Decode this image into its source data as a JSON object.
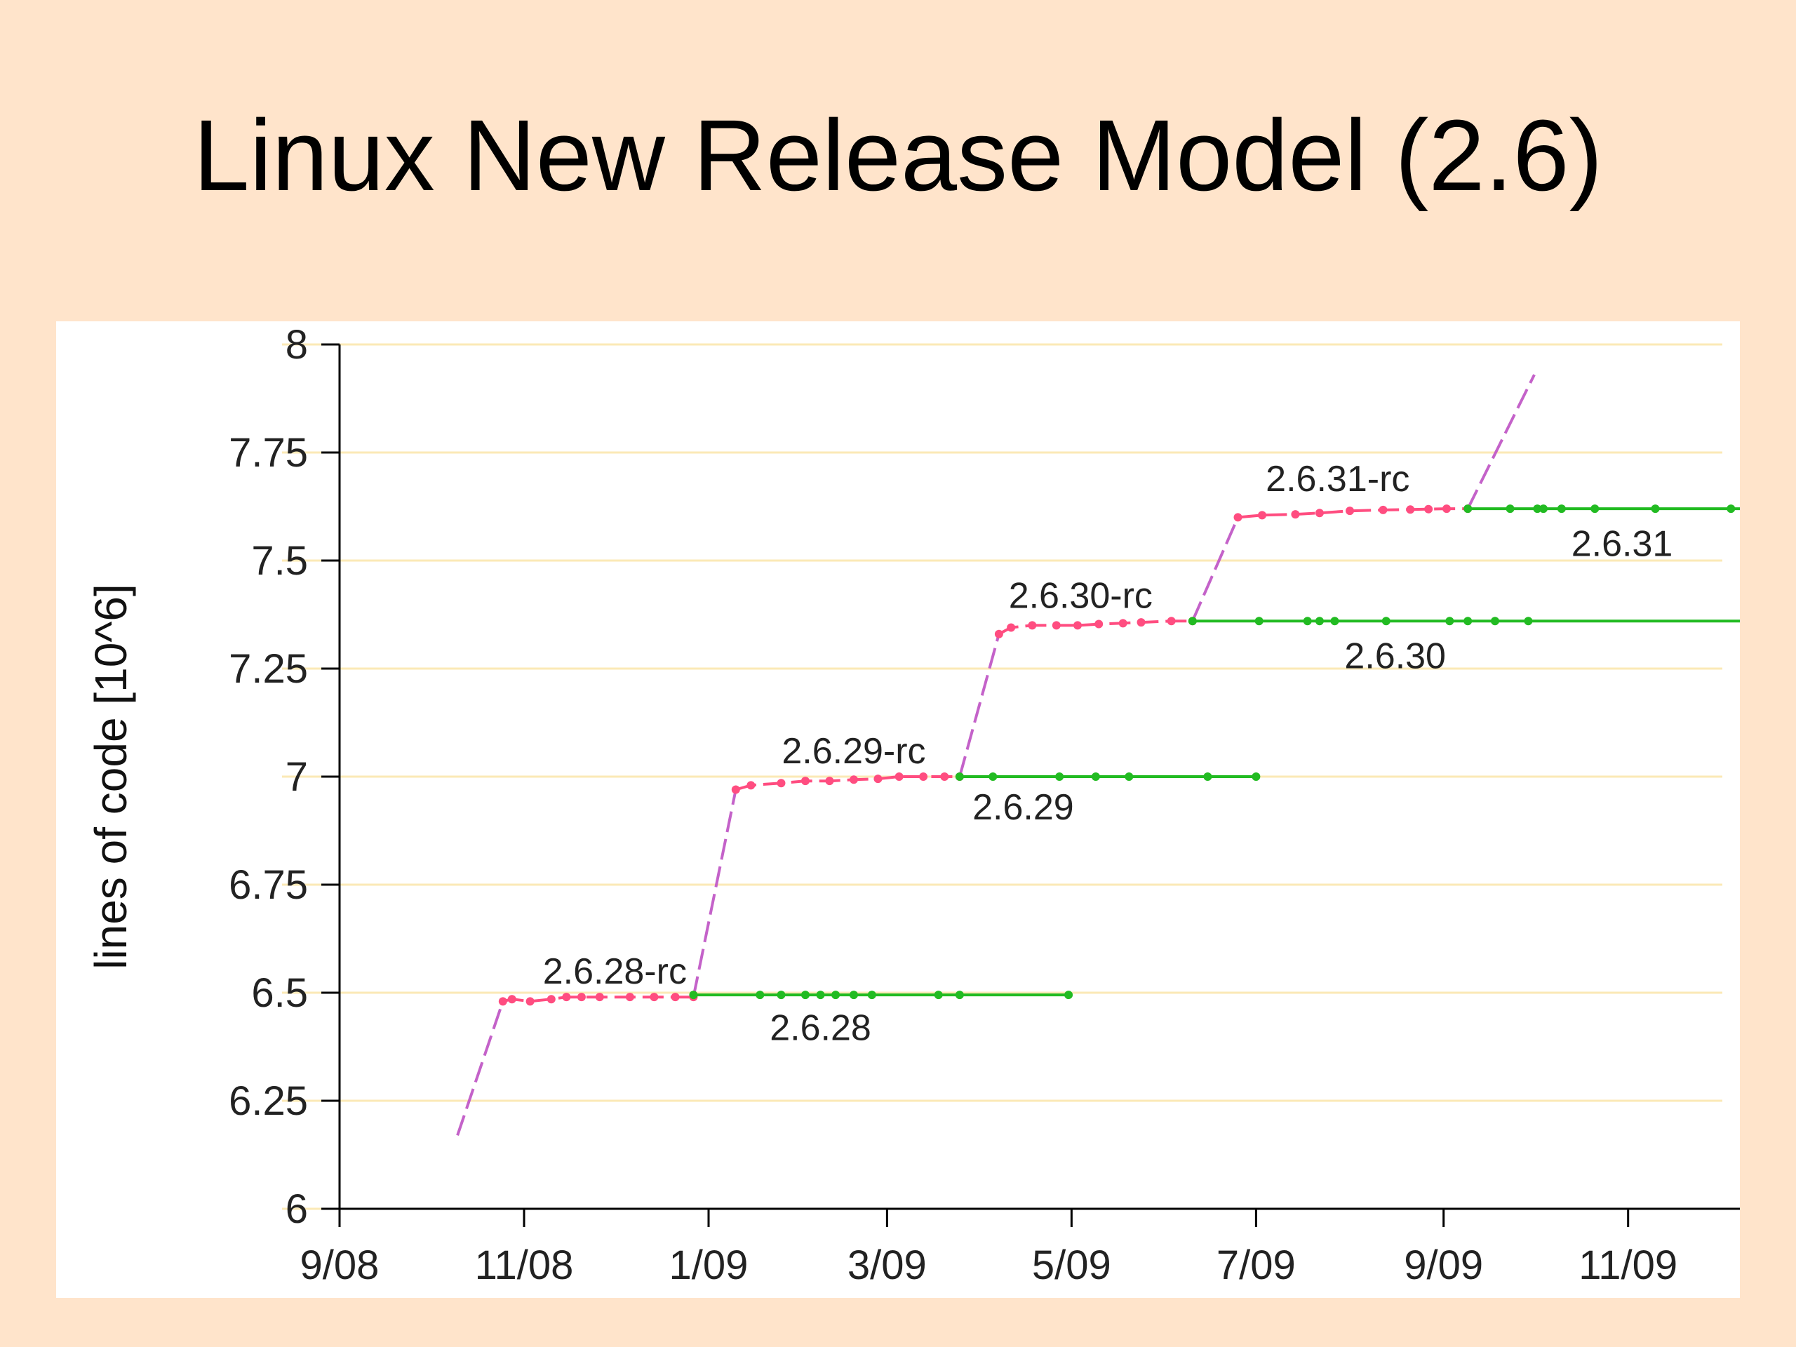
{
  "slide": {
    "title": "Linux New Release Model (2.6)"
  },
  "colors": {
    "background": "#ffe4cb",
    "plot_background": "#ffffff",
    "grid": "#fbe9b6",
    "rc_line": "#ff4d80",
    "rc_transition": "#c462c9",
    "release_line": "#22bb22",
    "axis": "#000000"
  },
  "chart_data": {
    "type": "line",
    "title": "",
    "xlabel": "",
    "ylabel": "lines of code [10^6]",
    "x_is_date": true,
    "xlim": [
      "2008-09-01",
      "2009-12-25"
    ],
    "ylim": [
      6,
      8
    ],
    "grid": true,
    "x_ticks": [
      {
        "date": "2008-09-01",
        "label": "9/08"
      },
      {
        "date": "2008-11-01",
        "label": "11/08"
      },
      {
        "date": "2009-01-01",
        "label": "1/09"
      },
      {
        "date": "2009-03-01",
        "label": "3/09"
      },
      {
        "date": "2009-05-01",
        "label": "5/09"
      },
      {
        "date": "2009-07-01",
        "label": "7/09"
      },
      {
        "date": "2009-09-01",
        "label": "9/09"
      },
      {
        "date": "2009-11-01",
        "label": "11/09"
      }
    ],
    "y_ticks": [
      {
        "value": 6,
        "label": "6"
      },
      {
        "value": 6.25,
        "label": "6.25"
      },
      {
        "value": 6.5,
        "label": "6.5"
      },
      {
        "value": 6.75,
        "label": "6.75"
      },
      {
        "value": 7,
        "label": "7"
      },
      {
        "value": 7.25,
        "label": "7.25"
      },
      {
        "value": 7.5,
        "label": "7.5"
      },
      {
        "value": 7.75,
        "label": "7.75"
      },
      {
        "value": 8,
        "label": "8"
      }
    ],
    "transitions": [
      {
        "points": [
          [
            "2008-10-10",
            6.17
          ],
          [
            "2008-10-25",
            6.48
          ]
        ]
      },
      {
        "points": [
          [
            "2008-12-27",
            6.49
          ],
          [
            "2009-01-10",
            6.97
          ]
        ]
      },
      {
        "points": [
          [
            "2009-03-25",
            7.0
          ],
          [
            "2009-04-07",
            7.33
          ]
        ]
      },
      {
        "points": [
          [
            "2009-06-10",
            7.36
          ],
          [
            "2009-06-25",
            7.6
          ]
        ]
      },
      {
        "points": [
          [
            "2009-09-09",
            7.62
          ],
          [
            "2009-10-01",
            7.93
          ]
        ]
      }
    ],
    "series": [
      {
        "name": "2.6.28-rc",
        "kind": "rc",
        "label": {
          "text": "2.6.28-rc",
          "date": "2008-12-01",
          "y": 6.55
        },
        "points": [
          [
            "2008-10-25",
            6.48
          ],
          [
            "2008-10-28",
            6.485
          ],
          [
            "2008-11-03",
            6.48
          ],
          [
            "2008-11-10",
            6.485
          ],
          [
            "2008-11-15",
            6.49
          ],
          [
            "2008-11-20",
            6.49
          ],
          [
            "2008-11-26",
            6.49
          ],
          [
            "2008-12-06",
            6.49
          ],
          [
            "2008-12-14",
            6.49
          ],
          [
            "2008-12-21",
            6.49
          ],
          [
            "2008-12-27",
            6.49
          ]
        ]
      },
      {
        "name": "2.6.28",
        "kind": "release",
        "label": {
          "text": "2.6.28",
          "date": "2009-02-07",
          "y": 6.42
        },
        "points": [
          [
            "2008-12-27",
            6.495
          ],
          [
            "2009-01-18",
            6.495
          ],
          [
            "2009-01-25",
            6.495
          ],
          [
            "2009-02-02",
            6.495
          ],
          [
            "2009-02-07",
            6.495
          ],
          [
            "2009-02-12",
            6.495
          ],
          [
            "2009-02-18",
            6.495
          ],
          [
            "2009-02-24",
            6.495
          ],
          [
            "2009-03-18",
            6.495
          ],
          [
            "2009-03-25",
            6.495
          ],
          [
            "2009-04-30",
            6.495
          ]
        ]
      },
      {
        "name": "2.6.29-rc",
        "kind": "rc",
        "label": {
          "text": "2.6.29-rc",
          "date": "2009-02-18",
          "y": 7.06
        },
        "points": [
          [
            "2009-01-10",
            6.97
          ],
          [
            "2009-01-15",
            6.98
          ],
          [
            "2009-01-25",
            6.985
          ],
          [
            "2009-02-02",
            6.99
          ],
          [
            "2009-02-10",
            6.99
          ],
          [
            "2009-02-18",
            6.993
          ],
          [
            "2009-02-26",
            6.995
          ],
          [
            "2009-03-05",
            7.0
          ],
          [
            "2009-03-13",
            7.0
          ],
          [
            "2009-03-20",
            7.0
          ],
          [
            "2009-03-25",
            7.0
          ]
        ]
      },
      {
        "name": "2.6.29",
        "kind": "release",
        "label": {
          "text": "2.6.29",
          "date": "2009-04-15",
          "y": 6.93
        },
        "points": [
          [
            "2009-03-25",
            7.0
          ],
          [
            "2009-04-05",
            7.0
          ],
          [
            "2009-04-27",
            7.0
          ],
          [
            "2009-05-09",
            7.0
          ],
          [
            "2009-05-20",
            7.0
          ],
          [
            "2009-06-15",
            7.0
          ],
          [
            "2009-07-01",
            7.0
          ]
        ]
      },
      {
        "name": "2.6.30-rc",
        "kind": "rc",
        "label": {
          "text": "2.6.30-rc",
          "date": "2009-05-04",
          "y": 7.42
        },
        "points": [
          [
            "2009-04-07",
            7.33
          ],
          [
            "2009-04-11",
            7.345
          ],
          [
            "2009-04-18",
            7.35
          ],
          [
            "2009-04-26",
            7.35
          ],
          [
            "2009-05-03",
            7.35
          ],
          [
            "2009-05-10",
            7.353
          ],
          [
            "2009-05-18",
            7.355
          ],
          [
            "2009-05-24",
            7.357
          ],
          [
            "2009-06-03",
            7.36
          ],
          [
            "2009-06-10",
            7.36
          ]
        ]
      },
      {
        "name": "2.6.30",
        "kind": "release",
        "label": {
          "text": "2.6.30",
          "date": "2009-08-16",
          "y": 7.28
        },
        "points": [
          [
            "2009-06-10",
            7.36
          ],
          [
            "2009-07-02",
            7.36
          ],
          [
            "2009-07-18",
            7.36
          ],
          [
            "2009-07-22",
            7.36
          ],
          [
            "2009-07-27",
            7.36
          ],
          [
            "2009-08-13",
            7.36
          ],
          [
            "2009-09-03",
            7.36
          ],
          [
            "2009-09-09",
            7.36
          ],
          [
            "2009-09-18",
            7.36
          ],
          [
            "2009-09-29",
            7.36
          ],
          [
            "2009-12-13",
            7.36
          ]
        ]
      },
      {
        "name": "2.6.31-rc",
        "kind": "rc",
        "label": {
          "text": "2.6.31-rc",
          "date": "2009-07-28",
          "y": 7.69
        },
        "points": [
          [
            "2009-06-25",
            7.6
          ],
          [
            "2009-07-03",
            7.605
          ],
          [
            "2009-07-14",
            7.607
          ],
          [
            "2009-07-22",
            7.61
          ],
          [
            "2009-08-01",
            7.615
          ],
          [
            "2009-08-12",
            7.617
          ],
          [
            "2009-08-21",
            7.618
          ],
          [
            "2009-08-27",
            7.619
          ],
          [
            "2009-09-02",
            7.62
          ],
          [
            "2009-09-09",
            7.62
          ]
        ]
      },
      {
        "name": "2.6.31",
        "kind": "release",
        "label": {
          "text": "2.6.31",
          "date": "2009-10-30",
          "y": 7.54
        },
        "points": [
          [
            "2009-09-09",
            7.62
          ],
          [
            "2009-09-23",
            7.62
          ],
          [
            "2009-10-02",
            7.62
          ],
          [
            "2009-10-04",
            7.62
          ],
          [
            "2009-10-10",
            7.62
          ],
          [
            "2009-10-21",
            7.62
          ],
          [
            "2009-11-10",
            7.62
          ],
          [
            "2009-12-05",
            7.62
          ],
          [
            "2009-12-20",
            7.62
          ],
          [
            "2009-12-25",
            7.62
          ]
        ]
      }
    ]
  }
}
